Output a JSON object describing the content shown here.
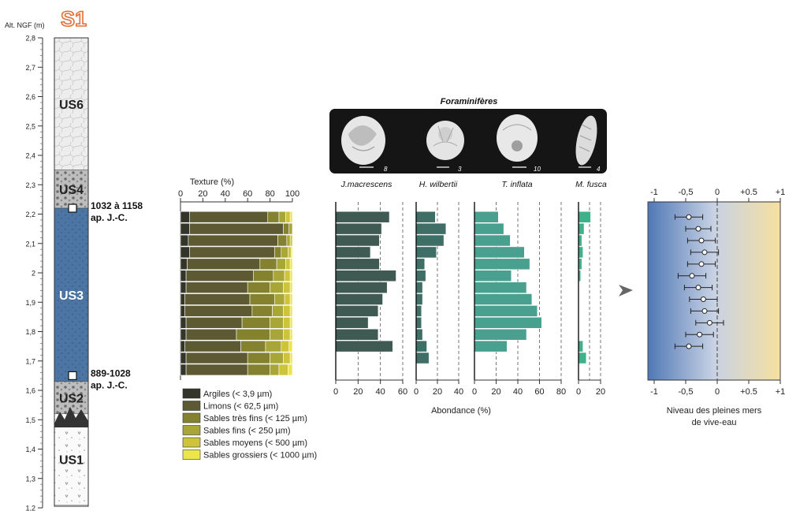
{
  "figure": {
    "site_label": "S1",
    "alt_label": "Alt. NGF (m)",
    "alt_ticks": [
      "2,8",
      "2,7",
      "2,6",
      "2,5",
      "2,4",
      "2,3",
      "2,2",
      "2,1",
      "2",
      "1,9",
      "1,8",
      "1,7",
      "1,6",
      "1,5",
      "1,4",
      "1,3",
      "1,2"
    ],
    "units": [
      {
        "name": "US6",
        "top": 2.8,
        "bottom": 2.35,
        "color": "#ececec"
      },
      {
        "name": "US4",
        "top": 2.35,
        "bottom": 2.22,
        "color": "#b4b4b4"
      },
      {
        "name": "US3",
        "top": 2.22,
        "bottom": 1.63,
        "color": "#4c75a4"
      },
      {
        "name": "US2",
        "top": 1.63,
        "bottom": 1.52,
        "color": "#8a8a8a"
      },
      {
        "name": "US1",
        "top": 1.52,
        "bottom": 1.21,
        "color": "#f6f6f6"
      }
    ],
    "dates": [
      {
        "alt": 2.22,
        "line1": "1032 à 1158",
        "line2": "ap. J.-C."
      },
      {
        "alt": 1.65,
        "line1": "889-1028",
        "line2": "ap. J.-C."
      }
    ],
    "foram_title": "Foraminifères",
    "abundance_label": "Abondance (%)",
    "sea_level_label_1": "Niveau des pleines mers",
    "sea_level_label_2": "de vive-eau"
  },
  "chart_data": [
    {
      "type": "bar",
      "title": "Texture (%)",
      "stacked": true,
      "xlim": [
        0,
        100
      ],
      "x_ticks": [
        "0",
        "20",
        "40",
        "60",
        "80",
        "100"
      ],
      "y_altitudes": [
        2.19,
        2.15,
        2.11,
        2.07,
        2.03,
        1.99,
        1.95,
        1.91,
        1.87,
        1.83,
        1.79,
        1.75,
        1.71,
        1.67
      ],
      "series": [
        {
          "name": "Argiles (< 3,9 µm)",
          "color": "#33352a",
          "values": [
            8,
            8,
            7,
            8,
            6,
            5,
            5,
            4,
            4,
            5,
            5,
            4,
            5,
            5
          ]
        },
        {
          "name": "Limons (< 62,5 µm)",
          "color": "#5d5a33",
          "values": [
            70,
            84,
            80,
            76,
            65,
            60,
            55,
            58,
            60,
            50,
            45,
            50,
            55,
            55
          ]
        },
        {
          "name": "Sables très fins (< 125 µm)",
          "color": "#85822f",
          "values": [
            10,
            5,
            8,
            6,
            15,
            18,
            20,
            22,
            18,
            25,
            30,
            22,
            20,
            20
          ]
        },
        {
          "name": "Sables fins (< 250 µm)",
          "color": "#a8a637",
          "values": [
            6,
            3,
            3,
            6,
            8,
            10,
            12,
            9,
            10,
            12,
            12,
            14,
            12,
            8
          ]
        },
        {
          "name": "Sables moyens (< 500 µm)",
          "color": "#cdc43c",
          "values": [
            4,
            0,
            2,
            3,
            4,
            5,
            6,
            5,
            6,
            6,
            6,
            7,
            6,
            8
          ]
        },
        {
          "name": "Sables grossiers (< 1000 µm)",
          "color": "#ece64a",
          "values": [
            2,
            0,
            0,
            1,
            2,
            2,
            2,
            2,
            2,
            2,
            2,
            3,
            2,
            4
          ]
        }
      ]
    },
    {
      "type": "bar",
      "name": "J.macrescens",
      "color": "#3e5a52",
      "xlim": [
        0,
        60
      ],
      "x_ticks": [
        "0",
        "20",
        "40",
        "60"
      ],
      "gridlines": [
        20,
        40,
        60
      ],
      "y_altitudes": [
        2.19,
        2.15,
        2.11,
        2.07,
        2.03,
        1.99,
        1.95,
        1.91,
        1.87,
        1.83,
        1.79,
        1.75,
        1.71,
        1.67
      ],
      "values": [
        48,
        41,
        39,
        31,
        39,
        54,
        46,
        42,
        38,
        29,
        38,
        51,
        0,
        0
      ]
    },
    {
      "type": "bar",
      "name": "H. wilbertii",
      "color": "#3e6e66",
      "xlim": [
        0,
        40
      ],
      "x_ticks": [
        "0",
        "20",
        "40"
      ],
      "gridlines": [
        20,
        40
      ],
      "y_altitudes": [
        2.19,
        2.15,
        2.11,
        2.07,
        2.03,
        1.99,
        1.95,
        1.91,
        1.87,
        1.83,
        1.79,
        1.75,
        1.71,
        1.67
      ],
      "values": [
        18,
        28,
        26,
        19,
        8,
        9,
        6,
        6,
        5,
        5,
        6,
        10,
        12,
        0
      ]
    },
    {
      "type": "bar",
      "name": "T. inflata",
      "color": "#4aa08e",
      "xlim": [
        0,
        80
      ],
      "x_ticks": [
        "0",
        "20",
        "40",
        "60",
        "80"
      ],
      "gridlines": [
        20,
        40,
        60,
        80
      ],
      "y_altitudes": [
        2.19,
        2.15,
        2.11,
        2.07,
        2.03,
        1.99,
        1.95,
        1.91,
        1.87,
        1.83,
        1.79,
        1.75,
        1.71,
        1.67
      ],
      "values": [
        22,
        27,
        33,
        46,
        51,
        34,
        48,
        53,
        58,
        62,
        48,
        30,
        0,
        0
      ]
    },
    {
      "type": "bar",
      "name": "M. fusca",
      "color": "#3eb08a",
      "xlim": [
        0,
        20
      ],
      "x_ticks": [
        "0",
        "20"
      ],
      "gridlines": [
        10,
        20
      ],
      "y_altitudes": [
        2.19,
        2.15,
        2.11,
        2.07,
        2.03,
        1.99,
        1.95,
        1.91,
        1.87,
        1.83,
        1.79,
        1.75,
        1.71,
        1.67
      ],
      "values": [
        11,
        5,
        3,
        4,
        3,
        2,
        0,
        0,
        0,
        0,
        0,
        4,
        7,
        0
      ]
    },
    {
      "type": "scatter",
      "error_bars": true,
      "xlim": [
        -1,
        1
      ],
      "x_ticks_top": [
        "-1",
        "-0,5",
        "0",
        "+0.5",
        "+1"
      ],
      "x_ticks_bottom": [
        "-1",
        "-0,5",
        "0",
        "+0.5",
        "+1"
      ],
      "points": [
        {
          "alt": 2.19,
          "x": -0.45,
          "err": 0.22
        },
        {
          "alt": 2.15,
          "x": -0.3,
          "err": 0.2
        },
        {
          "alt": 2.11,
          "x": -0.25,
          "err": 0.22
        },
        {
          "alt": 2.07,
          "x": -0.2,
          "err": 0.22
        },
        {
          "alt": 2.03,
          "x": -0.25,
          "err": 0.22
        },
        {
          "alt": 1.99,
          "x": -0.4,
          "err": 0.22
        },
        {
          "alt": 1.95,
          "x": -0.3,
          "err": 0.22
        },
        {
          "alt": 1.91,
          "x": -0.22,
          "err": 0.22
        },
        {
          "alt": 1.87,
          "x": -0.2,
          "err": 0.22
        },
        {
          "alt": 1.83,
          "x": -0.12,
          "err": 0.22
        },
        {
          "alt": 1.79,
          "x": -0.28,
          "err": 0.22
        },
        {
          "alt": 1.75,
          "x": -0.45,
          "err": 0.22
        }
      ]
    }
  ]
}
